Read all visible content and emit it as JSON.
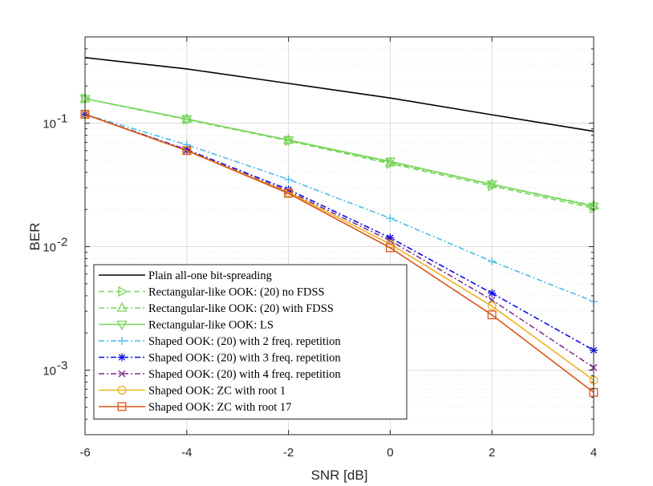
{
  "chart_data": {
    "type": "line",
    "xscale": "linear",
    "yscale": "log",
    "xlabel": "SNR [dB]",
    "ylabel": "BER",
    "xlim": [
      -6,
      4
    ],
    "ylim": [
      0.0003,
      0.5
    ],
    "xticks": [
      -6,
      -4,
      -2,
      0,
      2,
      4
    ],
    "xtick_labels": [
      "-6",
      "-4",
      "-2",
      "0",
      "2",
      "4"
    ],
    "yticks": [
      {
        "value": 0.1,
        "base": "10",
        "exp": "-1"
      },
      {
        "value": 0.01,
        "base": "10",
        "exp": "-2"
      },
      {
        "value": 0.001,
        "base": "10",
        "exp": "-3"
      }
    ],
    "grid": true,
    "legend_position": "bottom-left",
    "x": [
      -6,
      -4,
      -2,
      0,
      2,
      4
    ],
    "series": [
      {
        "name": "Plain all-one bit-spreading",
        "color": "#000000",
        "dash": "solid",
        "marker": "none",
        "values": [
          0.34,
          0.275,
          0.21,
          0.16,
          0.117,
          0.086
        ]
      },
      {
        "name": "Rectangular-like OOK: (20) no FDSS",
        "color": "#77d65a",
        "dash": "dashed",
        "marker": "triangle-right",
        "values": [
          0.158,
          0.107,
          0.072,
          0.047,
          0.031,
          0.0205
        ]
      },
      {
        "name": "Rectangular-like OOK: (20) with FDSS",
        "color": "#77d65a",
        "dash": "dashdot",
        "marker": "triangle-up",
        "values": [
          0.158,
          0.108,
          0.073,
          0.048,
          0.032,
          0.0215
        ]
      },
      {
        "name": "Rectangular-like OOK: LS",
        "color": "#77d65a",
        "dash": "solid",
        "marker": "triangle-down",
        "values": [
          0.158,
          0.108,
          0.073,
          0.049,
          0.032,
          0.0212
        ]
      },
      {
        "name": "Shaped OOK: (20) with 2 freq. repetition",
        "color": "#4cbde6",
        "dash": "dashdot",
        "marker": "plus",
        "values": [
          0.118,
          0.067,
          0.035,
          0.017,
          0.0076,
          0.0036
        ]
      },
      {
        "name": "Shaped OOK: (20) with 3 freq. repetition",
        "color": "#0c0ce6",
        "dash": "dashdot",
        "marker": "asterisk",
        "values": [
          0.118,
          0.061,
          0.029,
          0.0118,
          0.0042,
          0.00145
        ]
      },
      {
        "name": "Shaped OOK: (20) with 4 freq. repetition",
        "color": "#7e2f8e",
        "dash": "dashdot",
        "marker": "x",
        "values": [
          0.118,
          0.06,
          0.028,
          0.0112,
          0.0037,
          0.00105
        ]
      },
      {
        "name": "Shaped OOK: ZC with root 1",
        "color": "#edb120",
        "dash": "solid",
        "marker": "circle",
        "values": [
          0.118,
          0.06,
          0.0275,
          0.0105,
          0.0033,
          0.00083
        ]
      },
      {
        "name": "Shaped OOK: ZC with root 17",
        "color": "#d95319",
        "dash": "solid",
        "marker": "square",
        "values": [
          0.118,
          0.06,
          0.027,
          0.0098,
          0.0028,
          0.00066
        ]
      }
    ]
  }
}
